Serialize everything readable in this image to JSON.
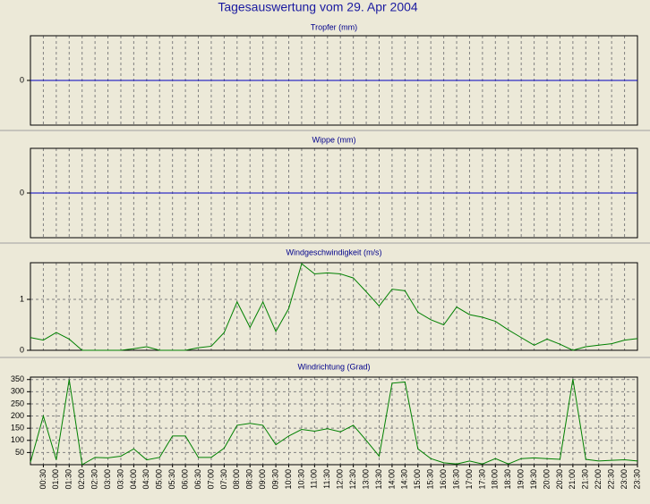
{
  "title": "Tagesauswertung vom 29. Apr 2004",
  "chart_data": [
    {
      "type": "line",
      "title": "Tropfer (mm)",
      "color": "#0000c0",
      "ylim": [
        -1,
        1
      ],
      "yticks": [
        0
      ],
      "grid": true,
      "values": [
        0,
        0,
        0,
        0,
        0,
        0,
        0,
        0,
        0,
        0,
        0,
        0,
        0,
        0,
        0,
        0,
        0,
        0,
        0,
        0,
        0,
        0,
        0,
        0,
        0,
        0,
        0,
        0,
        0,
        0,
        0,
        0,
        0,
        0,
        0,
        0,
        0,
        0,
        0,
        0,
        0,
        0,
        0,
        0,
        0,
        0,
        0,
        0
      ]
    },
    {
      "type": "line",
      "title": "Wippe (mm)",
      "color": "#0000c0",
      "ylim": [
        -1,
        1
      ],
      "yticks": [
        0
      ],
      "grid": true,
      "values": [
        0,
        0,
        0,
        0,
        0,
        0,
        0,
        0,
        0,
        0,
        0,
        0,
        0,
        0,
        0,
        0,
        0,
        0,
        0,
        0,
        0,
        0,
        0,
        0,
        0,
        0,
        0,
        0,
        0,
        0,
        0,
        0,
        0,
        0,
        0,
        0,
        0,
        0,
        0,
        0,
        0,
        0,
        0,
        0,
        0,
        0,
        0,
        0
      ]
    },
    {
      "type": "line",
      "title": "Windgeschwindigkeit (m/s)",
      "color": "#008000",
      "ylim": [
        0,
        1.72
      ],
      "yticks": [
        0,
        1
      ],
      "grid": true,
      "values": [
        0.25,
        0.2,
        0.35,
        0.22,
        0,
        0,
        0,
        0,
        0.03,
        0.07,
        0,
        0,
        0,
        0.05,
        0.08,
        0.35,
        0.95,
        0.45,
        0.95,
        0.37,
        0.82,
        1.7,
        1.5,
        1.52,
        1.5,
        1.42,
        1.15,
        0.87,
        1.2,
        1.17,
        0.75,
        0.6,
        0.5,
        0.85,
        0.7,
        0.65,
        0.57,
        0.4,
        0.25,
        0.1,
        0.22,
        0.12,
        0,
        0.07,
        0.1,
        0.13,
        0.2,
        0.23
      ]
    },
    {
      "type": "line",
      "title": "Windrichtung (Grad)",
      "color": "#008000",
      "ylim": [
        0,
        360
      ],
      "yticks": [
        50,
        100,
        150,
        200,
        250,
        300,
        350
      ],
      "grid": true,
      "categories": [
        null,
        "00:30",
        "01:00",
        "01:30",
        "02:00",
        "02:30",
        "03:00",
        "03:30",
        "04:00",
        "04:30",
        "05:00",
        "05:30",
        "06:00",
        "06:30",
        "07:00",
        "07:30",
        "08:00",
        "08:30",
        "09:00",
        "09:30",
        "10:00",
        "10:30",
        "11:00",
        "11:30",
        "12:00",
        "12:30",
        "13:00",
        "13:30",
        "14:00",
        "14:30",
        "15:00",
        "15:30",
        "16:00",
        "16:30",
        "17:00",
        "17:30",
        "18:00",
        "18:30",
        "19:00",
        "19:30",
        "20:00",
        "20:30",
        "21:00",
        "21:30",
        "22:00",
        "22:30",
        "23:00",
        "23:30"
      ],
      "values": [
        10,
        200,
        20,
        350,
        0,
        30,
        28,
        35,
        65,
        20,
        30,
        118,
        118,
        30,
        30,
        68,
        162,
        170,
        162,
        82,
        118,
        145,
        138,
        148,
        135,
        162,
        100,
        35,
        335,
        340,
        65,
        25,
        8,
        3,
        15,
        3,
        25,
        3,
        25,
        28,
        25,
        22,
        352,
        22,
        15,
        18,
        20,
        15
      ]
    }
  ]
}
